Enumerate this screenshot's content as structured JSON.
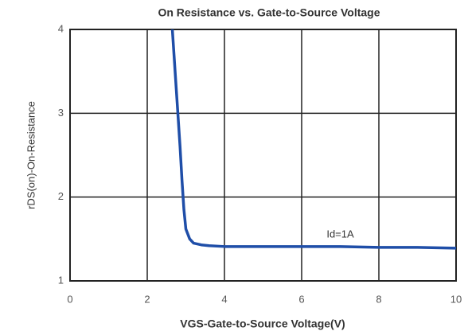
{
  "chart_data": {
    "type": "line",
    "title": "On Resistance vs. Gate-to-Source Voltage",
    "xlabel": "VGS-Gate-to-Source Voltage(V)",
    "ylabel": "rDS(on)-On-Resistance",
    "annotation": "Id=1A",
    "xlim": [
      0,
      10
    ],
    "xticks": [
      0,
      2,
      4,
      6,
      8,
      10
    ],
    "ylim": [
      1,
      4
    ],
    "yticks": [
      1,
      2,
      3,
      4
    ],
    "grid": true,
    "series": [
      {
        "name": "Id=1A",
        "color": "#1f4ea8",
        "x": [
          2.65,
          2.75,
          2.85,
          2.9,
          2.95,
          3.0,
          3.1,
          3.2,
          3.4,
          3.6,
          4,
          5,
          6,
          7,
          8,
          9,
          10
        ],
        "values": [
          4,
          3.3,
          2.6,
          2.2,
          1.85,
          1.62,
          1.5,
          1.45,
          1.43,
          1.42,
          1.41,
          1.41,
          1.41,
          1.41,
          1.4,
          1.4,
          1.39
        ]
      }
    ]
  }
}
